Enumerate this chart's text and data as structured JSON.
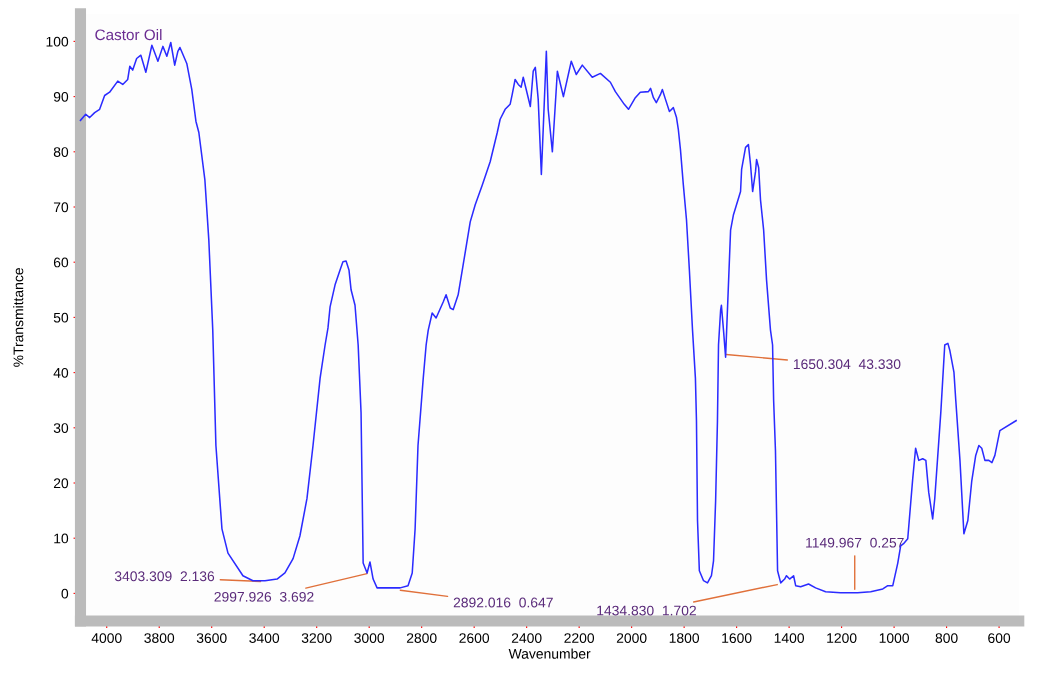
{
  "chart_data": {
    "type": "line",
    "title": "Castor Oil",
    "xlabel": "Wavenumber",
    "ylabel": "%Transmittance",
    "xlim": [
      4100,
      525
    ],
    "ylim": [
      -5,
      105
    ],
    "xticks": [
      4000,
      3800,
      3600,
      3400,
      3200,
      3000,
      2800,
      2600,
      2400,
      2200,
      2000,
      1800,
      1600,
      1400,
      1200,
      1000,
      800,
      600
    ],
    "yticks": [
      0,
      10,
      20,
      30,
      40,
      50,
      60,
      70,
      80,
      90,
      100
    ],
    "grid": false,
    "marker": "none",
    "line_style": "solid",
    "series": [
      {
        "color": "#2b2bff",
        "x": [
          4100,
          4080,
          4065,
          4046,
          4027,
          4008,
          3989,
          3958,
          3939,
          3920,
          3912,
          3901,
          3886,
          3870,
          3851,
          3828,
          3805,
          3786,
          3771,
          3756,
          3741,
          3729,
          3721,
          3695,
          3676,
          3660,
          3649,
          3626,
          3611,
          3596,
          3584,
          3561,
          3538,
          3481,
          3443,
          3397,
          3351,
          3321,
          3290,
          3264,
          3237,
          3214,
          3187,
          3168,
          3157,
          3149,
          3130,
          3111,
          3100,
          3088,
          3077,
          3069,
          3054,
          3042,
          3031,
          3023,
          3008,
          2997,
          2985,
          2970,
          2920,
          2882,
          2852,
          2836,
          2825,
          2814,
          2794,
          2783,
          2775,
          2760,
          2745,
          2718,
          2707,
          2691,
          2680,
          2661,
          2642,
          2615,
          2596,
          2569,
          2539,
          2512,
          2501,
          2482,
          2463,
          2455,
          2444,
          2432,
          2421,
          2413,
          2386,
          2375,
          2367,
          2356,
          2344,
          2337,
          2325,
          2318,
          2302,
          2283,
          2260,
          2230,
          2211,
          2188,
          2150,
          2119,
          2081,
          2062,
          2028,
          2012,
          1986,
          1967,
          1936,
          1928,
          1917,
          1906,
          1890,
          1883,
          1871,
          1856,
          1841,
          1829,
          1822,
          1814,
          1803,
          1791,
          1780,
          1768,
          1757,
          1753,
          1749,
          1742,
          1726,
          1711,
          1696,
          1688,
          1680,
          1673,
          1669,
          1661,
          1658,
          1650,
          1642,
          1623,
          1612,
          1585,
          1581,
          1566,
          1555,
          1547,
          1539,
          1528,
          1524,
          1516,
          1509,
          1497,
          1486,
          1471,
          1463,
          1459,
          1452,
          1444,
          1432,
          1417,
          1410,
          1398,
          1383,
          1375,
          1356,
          1326,
          1299,
          1261,
          1204,
          1139,
          1089,
          1043,
          1024,
          1005,
          986,
          975,
          964,
          948,
          929,
          918,
          906,
          891,
          879,
          868,
          853,
          845,
          822,
          807,
          795,
          788,
          772,
          765,
          749,
          734,
          719,
          704,
          689,
          677,
          666,
          654,
          639,
          627,
          616,
          597,
          535
        ],
        "values": [
          85.7,
          86.8,
          86.2,
          87.1,
          87.7,
          90.2,
          90.8,
          92.8,
          92.2,
          93.1,
          95.5,
          94.8,
          96.9,
          97.5,
          94.4,
          99.3,
          96.4,
          99.1,
          97.3,
          99.8,
          95.7,
          98.2,
          98.9,
          96.0,
          91.3,
          85.5,
          83.5,
          74.9,
          64.0,
          47.7,
          26.8,
          11.7,
          7.3,
          3.2,
          2.3,
          2.3,
          2.6,
          3.7,
          6.3,
          10.4,
          17.2,
          26.8,
          39.0,
          45.0,
          48.1,
          51.9,
          55.9,
          58.6,
          60.1,
          60.2,
          58.6,
          55.0,
          52.2,
          45.0,
          32.8,
          5.5,
          3.7,
          5.7,
          2.6,
          1.0,
          1.0,
          1.0,
          1.4,
          3.7,
          11.7,
          26.8,
          39.0,
          45.0,
          47.7,
          50.8,
          49.9,
          52.8,
          54.1,
          51.7,
          51.4,
          54.1,
          59.5,
          67.3,
          70.4,
          74.0,
          78.2,
          83.5,
          85.9,
          87.7,
          88.6,
          90.4,
          93.1,
          92.2,
          91.7,
          93.5,
          88.2,
          94.6,
          95.3,
          89.5,
          75.9,
          84.0,
          98.2,
          87.7,
          80.0,
          94.6,
          90.0,
          96.4,
          94.0,
          95.7,
          93.5,
          94.2,
          92.6,
          90.9,
          88.6,
          87.7,
          89.8,
          90.8,
          90.9,
          91.5,
          89.8,
          88.9,
          90.4,
          91.3,
          89.5,
          87.3,
          88.0,
          86.2,
          84.0,
          80.4,
          74.0,
          67.7,
          58.6,
          47.7,
          39.0,
          31.3,
          13.2,
          4.1,
          2.3,
          1.9,
          3.2,
          5.9,
          16.8,
          31.3,
          45.0,
          51.3,
          52.2,
          47.7,
          42.8,
          65.8,
          68.6,
          72.8,
          76.8,
          80.8,
          81.3,
          77.7,
          72.8,
          76.4,
          78.6,
          77.1,
          71.3,
          65.8,
          56.8,
          47.7,
          45.0,
          35.0,
          25.9,
          4.1,
          1.9,
          2.6,
          3.2,
          2.6,
          3.2,
          1.4,
          1.2,
          1.7,
          1.0,
          0.3,
          0.1,
          0.1,
          0.3,
          0.8,
          1.4,
          1.4,
          5.5,
          8.6,
          9.0,
          9.9,
          20.8,
          26.3,
          24.1,
          24.4,
          24.1,
          18.3,
          13.5,
          17.2,
          32.8,
          45.0,
          45.3,
          44.1,
          40.1,
          35.0,
          24.1,
          10.8,
          13.2,
          20.4,
          25.0,
          26.8,
          26.3,
          24.1,
          24.1,
          23.7,
          25.0,
          29.5,
          31.3
        ]
      }
    ],
    "annotations": [
      {
        "text": "3403.309  2.136",
        "x": 3403.309,
        "y": 2.136
      },
      {
        "text": "2997.926  3.692",
        "x": 2997.926,
        "y": 3.692
      },
      {
        "text": "2892.016  0.647",
        "x": 2892.016,
        "y": 0.647
      },
      {
        "text": "1650.304  43.330",
        "x": 1650.304,
        "y": 43.33
      },
      {
        "text": "1434.830  1.702",
        "x": 1434.83,
        "y": 1.702
      },
      {
        "text": "1149.967  0.257",
        "x": 1149.967,
        "y": 0.257
      }
    ]
  }
}
